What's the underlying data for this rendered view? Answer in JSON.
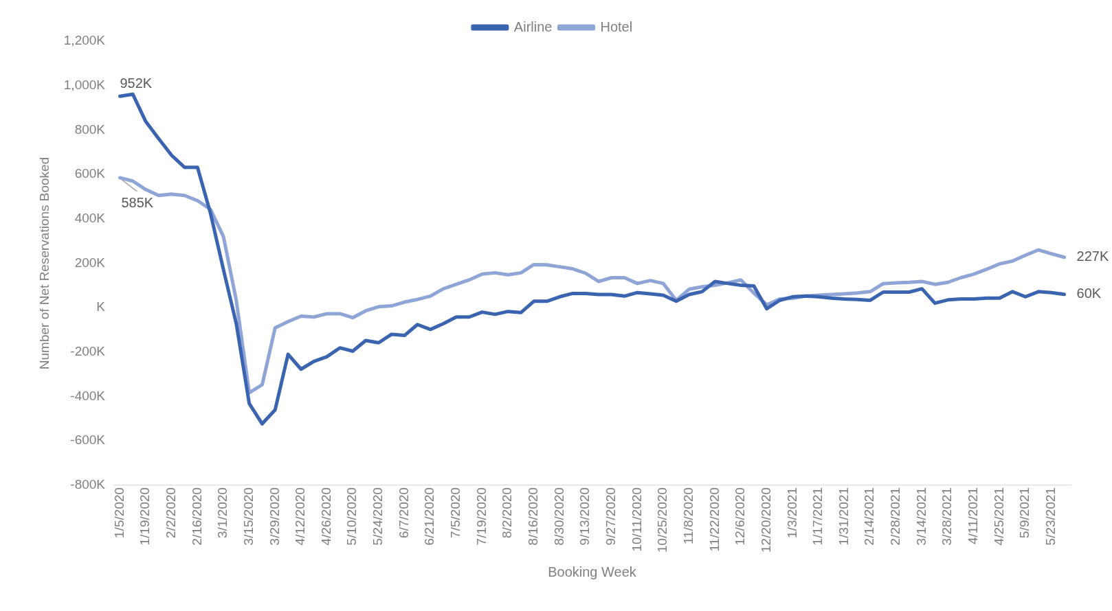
{
  "chart_data": {
    "type": "line",
    "xlabel": "Booking Week",
    "ylabel": "Number of Net Reservations Booked",
    "categories": [
      "1/5/2020",
      null,
      "1/19/2020",
      null,
      "2/2/2020",
      null,
      "2/16/2020",
      null,
      "3/1/2020",
      null,
      "3/15/2020",
      null,
      "3/29/2020",
      null,
      "4/12/2020",
      null,
      "4/26/2020",
      null,
      "5/10/2020",
      null,
      "5/24/2020",
      null,
      "6/7/2020",
      null,
      "6/21/2020",
      null,
      "7/5/2020",
      null,
      "7/19/2020",
      null,
      "8/2/2020",
      null,
      "8/16/2020",
      null,
      "8/30/2020",
      null,
      "9/13/2020",
      null,
      "9/27/2020",
      null,
      "10/11/2020",
      null,
      "10/25/2020",
      null,
      "11/8/2020",
      null,
      "11/22/2020",
      null,
      "12/6/2020",
      null,
      "12/20/2020",
      null,
      "1/3/2021",
      null,
      "1/17/2021",
      null,
      "1/31/2021",
      null,
      "2/14/2021",
      null,
      "2/28/2021",
      null,
      "3/14/2021",
      null,
      "3/28/2021",
      null,
      "4/11/2021",
      null,
      "4/25/2021",
      null,
      "5/9/2021",
      null,
      "5/23/2021",
      null
    ],
    "series": [
      {
        "name": "Airline",
        "color": "#3a63b0",
        "values": [
          952,
          961,
          838,
          761,
          686,
          632,
          632,
          426,
          173,
          -73,
          -432,
          -523,
          -460,
          -210,
          -277,
          -242,
          -221,
          -181,
          -196,
          -148,
          -158,
          -120,
          -125,
          -76,
          -98,
          -72,
          -42,
          -42,
          -20,
          -30,
          -17,
          -22,
          29,
          29,
          49,
          64,
          64,
          59,
          59,
          52,
          68,
          62,
          56,
          29,
          59,
          72,
          118,
          109,
          101,
          98,
          -5,
          33,
          49,
          52,
          49,
          43,
          39,
          37,
          33,
          70,
          70,
          70,
          85,
          20,
          35,
          39,
          39,
          43,
          43,
          72,
          49,
          72,
          68,
          60
        ],
        "value_labels": [
          "952K",
          null,
          null,
          null,
          null,
          null,
          null,
          null,
          null,
          null,
          null,
          null,
          null,
          null,
          null,
          null,
          null,
          null,
          null,
          null,
          null,
          null,
          null,
          null,
          null,
          null,
          null,
          null,
          null,
          null,
          null,
          null,
          null,
          null,
          null,
          null,
          null,
          null,
          null,
          null,
          null,
          null,
          null,
          null,
          null,
          null,
          null,
          null,
          null,
          null,
          null,
          null,
          null,
          null,
          null,
          null,
          null,
          null,
          null,
          null,
          null,
          null,
          null,
          null,
          null,
          null,
          null,
          null,
          null,
          null,
          null,
          null,
          null,
          "60K"
        ]
      },
      {
        "name": "Hotel",
        "color": "#8fa5d8",
        "values": [
          585,
          570,
          532,
          505,
          511,
          505,
          482,
          443,
          321,
          32,
          -383,
          -347,
          -91,
          -63,
          -38,
          -42,
          -27,
          -27,
          -45,
          -14,
          4,
          8,
          25,
          37,
          52,
          85,
          105,
          125,
          151,
          157,
          148,
          157,
          194,
          193,
          184,
          175,
          155,
          118,
          135,
          135,
          109,
          122,
          109,
          33,
          83,
          94,
          101,
          112,
          125,
          66,
          13,
          39,
          42,
          52,
          56,
          59,
          62,
          66,
          72,
          108,
          112,
          114,
          118,
          105,
          114,
          135,
          151,
          173,
          197,
          210,
          236,
          260,
          243,
          227
        ],
        "value_labels": [
          "585K",
          null,
          null,
          null,
          null,
          null,
          null,
          null,
          null,
          null,
          null,
          null,
          null,
          null,
          null,
          null,
          null,
          null,
          null,
          null,
          null,
          null,
          null,
          null,
          null,
          null,
          null,
          null,
          null,
          null,
          null,
          null,
          null,
          null,
          null,
          null,
          null,
          null,
          null,
          null,
          null,
          null,
          null,
          null,
          null,
          null,
          null,
          null,
          null,
          null,
          null,
          null,
          null,
          null,
          null,
          null,
          null,
          null,
          null,
          null,
          null,
          null,
          null,
          null,
          null,
          null,
          null,
          null,
          null,
          null,
          null,
          null,
          null,
          "227K"
        ]
      }
    ],
    "ylim": [
      -800,
      1200
    ],
    "yticks": [
      {
        "value": -800,
        "label": "-800K"
      },
      {
        "value": -600,
        "label": "-600K"
      },
      {
        "value": -400,
        "label": "-400K"
      },
      {
        "value": -200,
        "label": "-200K"
      },
      {
        "value": 0,
        "label": "K"
      },
      {
        "value": 200,
        "label": "200K"
      },
      {
        "value": 400,
        "label": "400K"
      },
      {
        "value": 600,
        "label": "600K"
      },
      {
        "value": 800,
        "label": "800K"
      },
      {
        "value": 1000,
        "label": "1,000K"
      },
      {
        "value": 1200,
        "label": "1,200K"
      }
    ],
    "grid": false,
    "legend": "top",
    "marker": "none",
    "line_style": "solid"
  }
}
